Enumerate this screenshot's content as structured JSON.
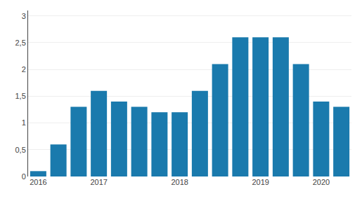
{
  "chart_data": {
    "type": "bar",
    "categories": [
      "2016",
      null,
      null,
      "2017",
      null,
      null,
      null,
      "2018",
      null,
      null,
      null,
      "2019",
      null,
      null,
      "2020",
      null
    ],
    "values": [
      0.1,
      0.6,
      1.3,
      1.6,
      1.4,
      1.3,
      1.2,
      1.2,
      1.6,
      2.1,
      2.6,
      2.6,
      2.6,
      2.1,
      1.4,
      1.3
    ],
    "color": "#1a7aad",
    "ylim": [
      0,
      3.1
    ],
    "yticks": [
      0,
      {
        "value": 0.5,
        "label": "0,5"
      },
      1,
      {
        "value": 1.5,
        "label": "1,5"
      },
      2,
      {
        "value": 2.5,
        "label": "2,5"
      },
      3
    ],
    "grid": true
  }
}
